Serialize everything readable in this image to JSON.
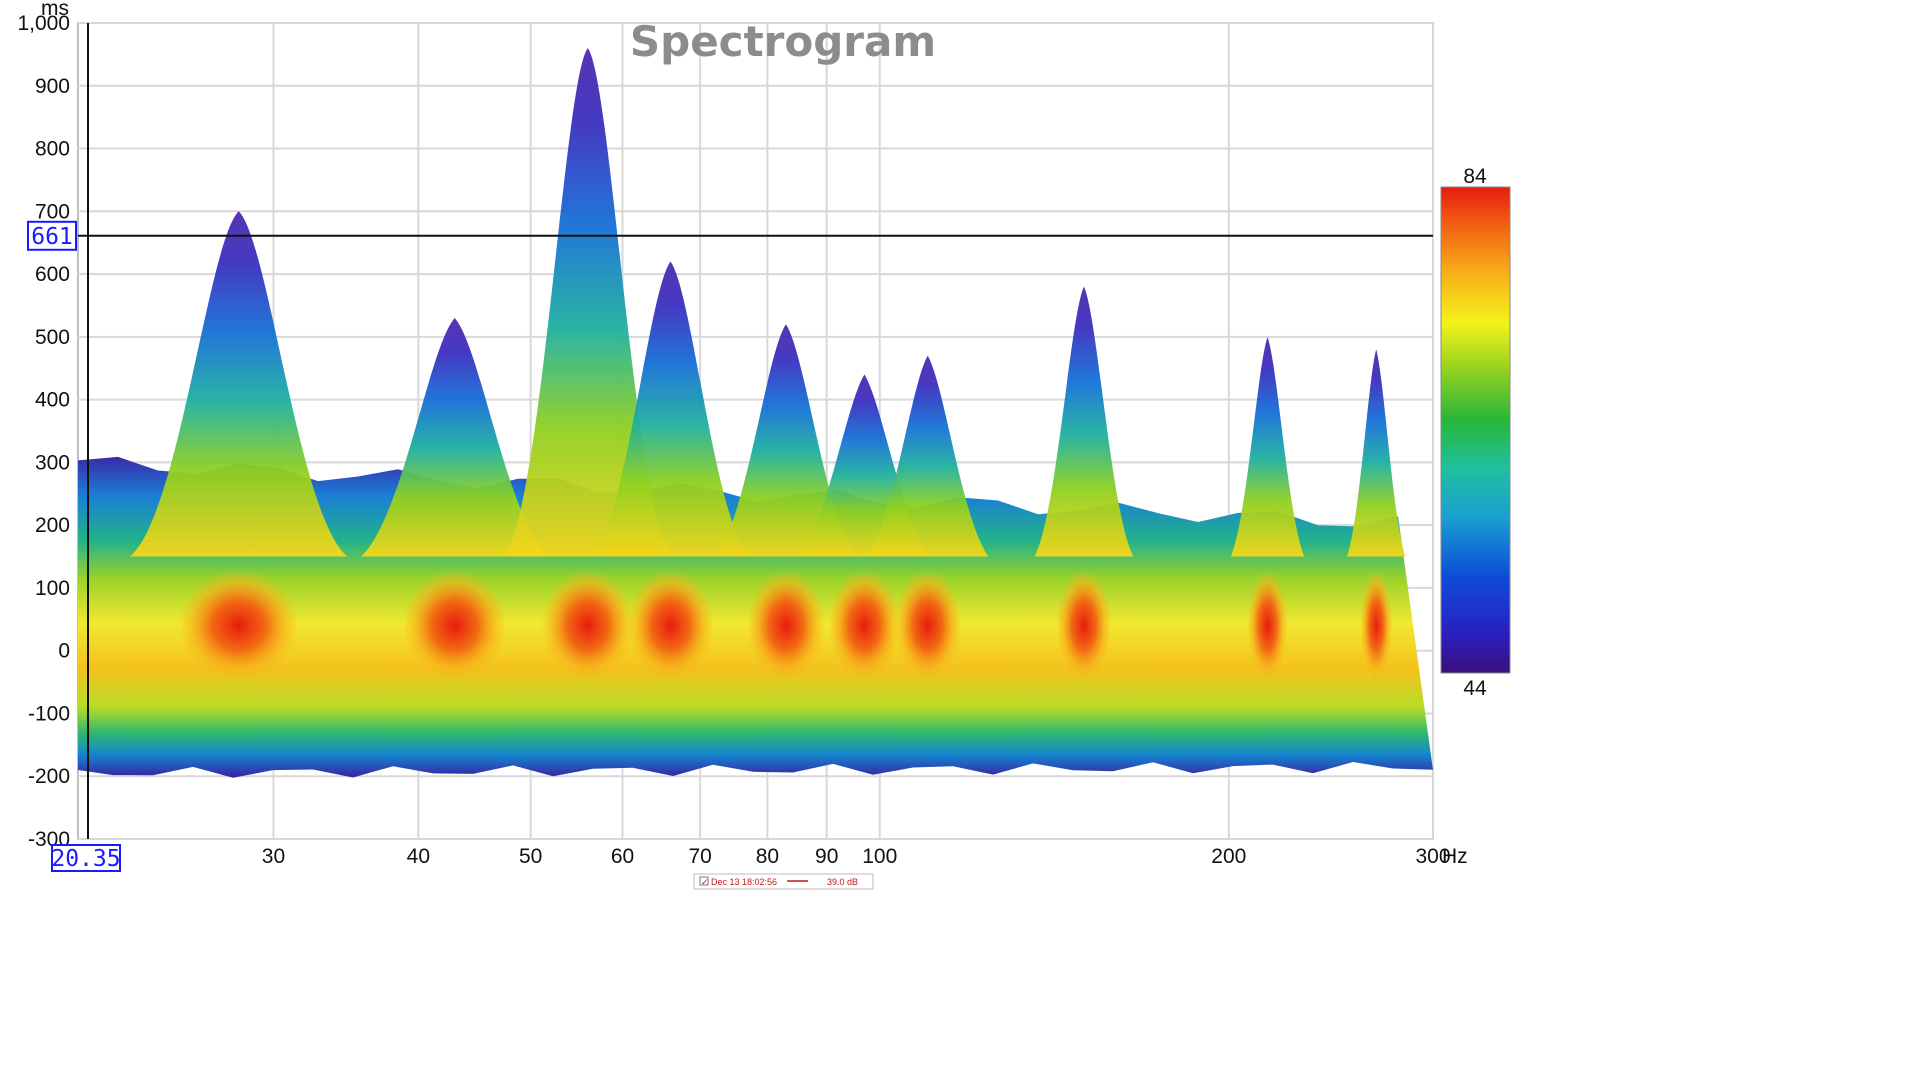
{
  "chart_data": {
    "type": "heatmap",
    "title": "Spectrogram",
    "x_unit": "Hz",
    "y_unit": "ms",
    "x_scale": "log",
    "xlim": [
      20.35,
      300
    ],
    "ylim": [
      -300,
      1000
    ],
    "x_ticks": [
      30,
      40,
      50,
      60,
      70,
      80,
      90,
      100,
      200,
      300
    ],
    "x_tick_labels": [
      "30",
      "40",
      "50",
      "60",
      "70",
      "80",
      "90",
      "100",
      "200",
      "300"
    ],
    "y_ticks": [
      1000,
      900,
      800,
      700,
      600,
      500,
      400,
      300,
      200,
      100,
      0,
      -100,
      -200,
      -300
    ],
    "y_tick_labels": [
      "1,000",
      "900",
      "800",
      "700",
      "600",
      "500",
      "400",
      "300",
      "200",
      "100",
      "0",
      "-100",
      "-200",
      "-300"
    ],
    "grid": true,
    "colorscale": {
      "min": 44,
      "max": 84,
      "min_label": "44",
      "max_label": "84",
      "colors": [
        "#3b0f7a",
        "#2a1fbf",
        "#0d4dd8",
        "#1a9fd0",
        "#20c0a0",
        "#27b63a",
        "#8fd020",
        "#f4f21a",
        "#f7b21a",
        "#f26a12",
        "#e81c10"
      ]
    },
    "peak_ridges": [
      {
        "hz": 28,
        "decay_ms": 700
      },
      {
        "hz": 43,
        "decay_ms": 530
      },
      {
        "hz": 56,
        "decay_ms": 960
      },
      {
        "hz": 66,
        "decay_ms": 620
      },
      {
        "hz": 83,
        "decay_ms": 520
      },
      {
        "hz": 97,
        "decay_ms": 440
      },
      {
        "hz": 110,
        "decay_ms": 470
      },
      {
        "hz": 150,
        "decay_ms": 580
      },
      {
        "hz": 216,
        "decay_ms": 500
      },
      {
        "hz": 268,
        "decay_ms": 480
      }
    ],
    "cursor": {
      "x": 20.35,
      "y": 661,
      "x_label": "20.35",
      "y_label": "661"
    },
    "legend": {
      "checked": true,
      "date": "Dec 13 18:02:56",
      "level": "39.0 dB"
    }
  }
}
